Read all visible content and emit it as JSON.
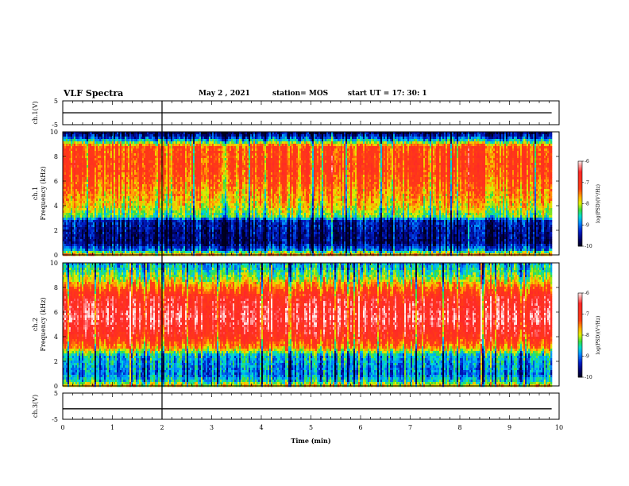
{
  "header": {
    "title": "VLF Spectra",
    "date": "May 2 , 2021",
    "station": "station= MOS",
    "start": "start UT =   17: 30: 1"
  },
  "colors": {
    "background": "#ffffff",
    "trace": "#000000",
    "colormap": [
      "#ffffff",
      "#ff2020",
      "#ffb000",
      "#e0f000",
      "#40e040",
      "#00e0e0",
      "#0090ff",
      "#0020c0",
      "#000060",
      "#000020"
    ]
  },
  "chart_data": [
    {
      "type": "line",
      "title": "",
      "ylabel": "ch.1(V)",
      "ylim": [
        -5,
        5
      ],
      "yticks": [
        "5",
        "-5"
      ],
      "xlim": [
        0,
        10
      ],
      "series": [
        {
          "x": [
            0,
            9.85
          ],
          "y": [
            0,
            0
          ]
        }
      ]
    },
    {
      "type": "heatmap",
      "ylabel": "ch.1\nFrequency (kHz)",
      "ylim": [
        0,
        10
      ],
      "yticks": [
        "0",
        "2",
        "4",
        "6",
        "8",
        "10"
      ],
      "xlim": [
        0,
        10
      ],
      "data_xmax": 9.85,
      "colorbar": {
        "label": "log(PSD)(V²/Hz)",
        "range": [
          -10,
          -6
        ],
        "ticks": [
          "-6",
          "-7",
          "-8",
          "-9",
          "-10"
        ]
      },
      "freq_profile": [
        {
          "f": 0.0,
          "v": -7.6
        },
        {
          "f": 0.4,
          "v": -9.0
        },
        {
          "f": 1.0,
          "v": -9.7
        },
        {
          "f": 2.0,
          "v": -9.6
        },
        {
          "f": 2.8,
          "v": -9.4
        },
        {
          "f": 3.1,
          "v": -8.4
        },
        {
          "f": 4.0,
          "v": -7.9
        },
        {
          "f": 5.5,
          "v": -7.5
        },
        {
          "f": 7.0,
          "v": -7.2
        },
        {
          "f": 8.8,
          "v": -7.3
        },
        {
          "f": 9.2,
          "v": -8.4
        },
        {
          "f": 9.6,
          "v": -9.4
        },
        {
          "f": 10.0,
          "v": -9.8
        }
      ]
    },
    {
      "type": "heatmap",
      "ylabel": "ch.2\nFrequency (kHz)",
      "ylim": [
        0,
        10
      ],
      "yticks": [
        "0",
        "2",
        "4",
        "6",
        "8",
        "10"
      ],
      "xlim": [
        0,
        10
      ],
      "data_xmax": 9.85,
      "colorbar": {
        "label": "log(PSD)(V²/Hz)",
        "range": [
          -10,
          -6
        ],
        "ticks": [
          "-6",
          "-7",
          "-8",
          "-9",
          "-10"
        ]
      },
      "freq_profile": [
        {
          "f": 0.0,
          "v": -7.8
        },
        {
          "f": 0.4,
          "v": -8.6
        },
        {
          "f": 1.0,
          "v": -9.0
        },
        {
          "f": 2.5,
          "v": -8.7
        },
        {
          "f": 3.1,
          "v": -7.6
        },
        {
          "f": 4.0,
          "v": -6.9
        },
        {
          "f": 5.5,
          "v": -6.4
        },
        {
          "f": 7.0,
          "v": -6.7
        },
        {
          "f": 8.0,
          "v": -7.4
        },
        {
          "f": 8.6,
          "v": -8.0
        },
        {
          "f": 9.2,
          "v": -8.4
        },
        {
          "f": 10.0,
          "v": -8.8
        }
      ]
    },
    {
      "type": "line",
      "ylabel": "ch.3(V)",
      "ylim": [
        -5,
        5
      ],
      "yticks": [
        "5",
        "-5"
      ],
      "xlim": [
        0,
        10
      ],
      "xlabel": "Time (min)",
      "xticks": [
        "0",
        "1",
        "2",
        "3",
        "4",
        "5",
        "6",
        "7",
        "8",
        "9",
        "10"
      ],
      "series": [
        {
          "x": [
            0,
            9.85
          ],
          "y": [
            -1,
            -1
          ]
        }
      ]
    }
  ]
}
